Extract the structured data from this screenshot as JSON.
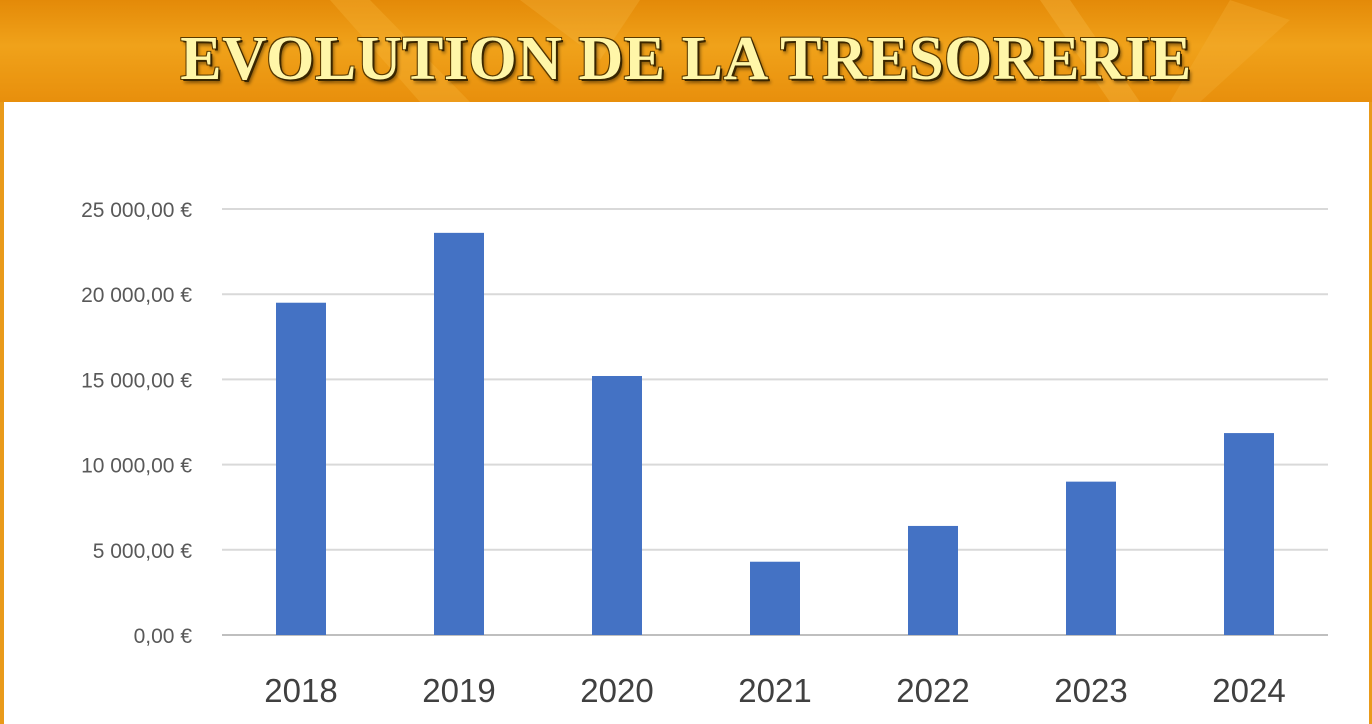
{
  "title": "EVOLUTION DE LA TRESORERIE",
  "colors": {
    "banner": "#E89010",
    "title_text": "#FFF6A8",
    "bar": "#4472C4",
    "grid": "#D9D9D9",
    "panel": "#FFFFFF"
  },
  "chart_data": {
    "type": "bar",
    "title": "",
    "xlabel": "",
    "ylabel": "",
    "categories": [
      "2018",
      "2019",
      "2020",
      "2021",
      "2022",
      "2023",
      "2024"
    ],
    "values": [
      19500,
      23600,
      15200,
      4300,
      6400,
      9000,
      11850
    ],
    "ylim": [
      0,
      25000
    ],
    "yticks": [
      0,
      5000,
      10000,
      15000,
      20000,
      25000
    ],
    "ytick_labels": [
      "0,00 €",
      "5 000,00 €",
      "10 000,00 €",
      "15 000,00 €",
      "20 000,00 €",
      "25 000,00 €"
    ],
    "grid": "horizontal",
    "legend": "none"
  }
}
